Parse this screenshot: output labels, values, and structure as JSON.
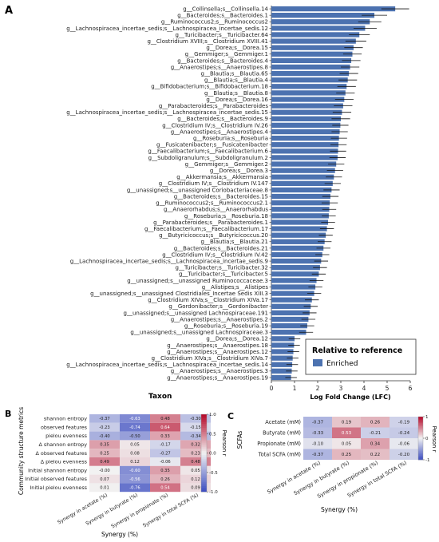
{
  "panels": {
    "a": "A",
    "b": "B",
    "c": "C"
  },
  "chart_data": [
    {
      "type": "bar",
      "orientation": "horizontal",
      "xlabel": "Log Fold Change (LFC)",
      "ylabel": "Taxon",
      "xlim": [
        0,
        6
      ],
      "xticks": [
        0,
        1,
        2,
        3,
        4,
        5,
        6
      ],
      "legend": {
        "title": "Relative to reference",
        "entries": [
          "Enriched"
        ],
        "placement": "bottom-right"
      },
      "series_color": "#4c72b0",
      "categories": [
        "g__Collinsella;s__Collinsella.14",
        "g__Bacteroides;s__Bacteroides.1",
        "g__Ruminococcus2;s__Ruminococcus2",
        "g__Lachnospiracea_incertae_sedis;s__Lachnospiracea_incertae_sedis.12",
        "g__Turicibacter;s__Turicibacter.64",
        "g__Clostridium XVIII;s__Clostridium XVIII.41",
        "g__Dorea;s__Dorea.15",
        "g__Gemmiger;s__Gemmiger.1",
        "g__Bacteroides;s__Bacteroides.4",
        "g__Anaerostipes;s__Anaerostipes.8",
        "g__Blautia;s__Blautia.65",
        "g__Blautia;s__Blautia.4",
        "g__Bifidobacterium;s__Bifidobacterium.18",
        "g__Blautia;s__Blautia.8",
        "g__Dorea;s__Dorea.16",
        "g__Parabacteroides;s__Parabacteroides",
        "g__Lachnospiracea_incertae_sedis;s__Lachnospiracea_incertae_sedis.15",
        "g__Bacteroides;s__Bacteroides.9",
        "g__Clostridium IV;s__Clostridium IV.26",
        "g__Anaerostipes;s__Anaerostipes.4",
        "g__Roseburia;s__Roseburia",
        "g__Fusicatenibacter;s__Fusicatenibacter",
        "g__Faecalibacterium;s__Faecalibacterium.6",
        "g__Subdoligranulum;s__Subdoligranulum.2",
        "g__Gemmiger;s__Gemmiger.2",
        "g__Dorea;s__Dorea.3",
        "g__Akkermansia;s__Akkermansia",
        "g__Clostridium IV;s__Clostridium IV.147",
        "g__unassigned;s__unassigned Coriobacteriaceae.8",
        "g__Bacteroides;s__Bacteroides.15",
        "g__Ruminococcus2;s__Ruminococcus2.1",
        "g__Anaerorhabdus;s__Anaerorhabdus",
        "g__Roseburia;s__Roseburia.18",
        "g__Parabacteroides;s__Parabacteroides.1",
        "g__Faecalibacterium;s__Faecalibacterium.17",
        "g__Butyricicoccus;s__Butyricicoccus.20",
        "g__Blautia;s__Blautia.21",
        "g__Bacteroides;s__Bacteroides.21",
        "g__Clostridium IV;s__Clostridium IV.42",
        "g__Lachnospiracea_incertae_sedis;s__Lachnospiracea_incertae_sedis.9",
        "g__Turicibacter;s__Turicibacter.32",
        "g__Turicibacter;s__Turicibacter.5",
        "g__unassigned;s__unassigned Ruminococcaceae.3",
        "g__Alistipes;s__Alistipes",
        "g__unassigned;s__unassigned Clostridiales_Incertae Sedis XIII.3",
        "g__Clostridium XIVa;s__Clostridium XIVa.17",
        "g__Gordonibacter;s__Gordonibacter",
        "g__unassigned;s__unassigned Lachnospiraceae.191",
        "g__Anaerostipes;s__Anaerostipes.2",
        "g__Roseburia;s__Roseburia.19",
        "g__unassigned;s__unassigned Lachnospiraceae.3",
        "g__Dorea;s__Dorea.12",
        "g__Anaerostipes;s__Anaerostipes.18",
        "g__Anaerostipes;s__Anaerostipes.12",
        "g__Clostridium XIVa;s__Clostridium XIVa.7",
        "g__Lachnospiracea_incertae_sedis;s__Lachnospiracea_incertae_sedis.14",
        "g__Anaerostipes;s__Anaerostipes.3",
        "g__Anaerostipes;s__Anaerostipes.19"
      ],
      "values": [
        5.35,
        4.45,
        4.25,
        4.05,
        3.8,
        3.65,
        3.55,
        3.5,
        3.45,
        3.4,
        3.35,
        3.3,
        3.25,
        3.2,
        3.15,
        3.1,
        3.05,
        3.0,
        2.98,
        2.95,
        2.92,
        2.9,
        2.88,
        2.86,
        2.8,
        2.75,
        2.7,
        2.65,
        2.6,
        2.55,
        2.52,
        2.5,
        2.48,
        2.45,
        2.4,
        2.35,
        2.3,
        2.25,
        2.2,
        2.15,
        2.1,
        2.05,
        1.95,
        1.9,
        1.85,
        1.75,
        1.7,
        1.65,
        1.6,
        1.55,
        1.5,
        1.0,
        0.98,
        0.95,
        0.92,
        0.9,
        0.88,
        0.85
      ],
      "errors": [
        0.6,
        0.55,
        0.5,
        0.5,
        0.45,
        0.45,
        0.4,
        0.4,
        0.4,
        0.4,
        0.4,
        0.4,
        0.4,
        0.4,
        0.4,
        0.4,
        0.4,
        0.4,
        0.35,
        0.35,
        0.35,
        0.35,
        0.35,
        0.35,
        0.35,
        0.35,
        0.35,
        0.35,
        0.35,
        0.35,
        0.35,
        0.3,
        0.3,
        0.3,
        0.3,
        0.3,
        0.3,
        0.3,
        0.3,
        0.3,
        0.3,
        0.3,
        0.3,
        0.3,
        0.3,
        0.3,
        0.3,
        0.3,
        0.3,
        0.3,
        0.3,
        0.25,
        0.25,
        0.25,
        0.25,
        0.25,
        0.25,
        0.25
      ]
    },
    {
      "type": "heatmap",
      "ylabel": "Community structure metrics",
      "xlabel": "Synergy (%)",
      "colorbar_label": "Pearson r",
      "colorbar_ticks": [
        1.0,
        0.5,
        0.0,
        -0.5,
        -1.0
      ],
      "zlim": [
        -1,
        1
      ],
      "rows": [
        "shannon entropy",
        "observed features",
        "pielou evenness",
        "Δ shannon entropy",
        "Δ observed features",
        "Δ pielou evenness",
        "Initial shannon entropy",
        "Initial observed features",
        "Initial pielou evenness"
      ],
      "columns": [
        "Synergy in acetate (%)",
        "Synergy in butyrate (%)",
        "Synergy in propionate (%)",
        "Synergy in total SCFA (%)"
      ],
      "values": [
        [
          -0.37,
          -0.63,
          0.48,
          -0.3
        ],
        [
          -0.23,
          -0.74,
          0.64,
          -0.15
        ],
        [
          -0.4,
          -0.5,
          0.33,
          -0.34
        ],
        [
          0.35,
          0.05,
          -0.17,
          0.32
        ],
        [
          0.25,
          0.08,
          -0.27,
          0.23
        ],
        [
          0.49,
          0.12,
          -0.06,
          0.48
        ],
        [
          -0.0,
          -0.6,
          0.35,
          0.05
        ],
        [
          0.07,
          -0.56,
          0.26,
          0.12
        ],
        [
          0.01,
          -0.76,
          0.54,
          0.09
        ]
      ]
    },
    {
      "type": "heatmap",
      "ylabel": "SCFAs",
      "xlabel": "Synergy (%)",
      "colorbar_label": "Pearson r",
      "colorbar_ticks": [
        1,
        0,
        -1
      ],
      "zlim": [
        -1,
        1
      ],
      "rows": [
        "Acetate (mM)",
        "Butyrate (mM)",
        "Propionate (mM)",
        "Total SCFA (mM)"
      ],
      "columns": [
        "Synergy in acetate (%)",
        "Synergy in butyrate (%)",
        "Synergy in propionate (%)",
        "Synergy in total SCFA (%)"
      ],
      "values": [
        [
          -0.37,
          0.19,
          0.26,
          -0.19
        ],
        [
          -0.33,
          0.53,
          -0.21,
          -0.24
        ],
        [
          -0.1,
          0.05,
          0.34,
          -0.06
        ],
        [
          -0.37,
          0.25,
          0.22,
          -0.2
        ]
      ]
    }
  ]
}
